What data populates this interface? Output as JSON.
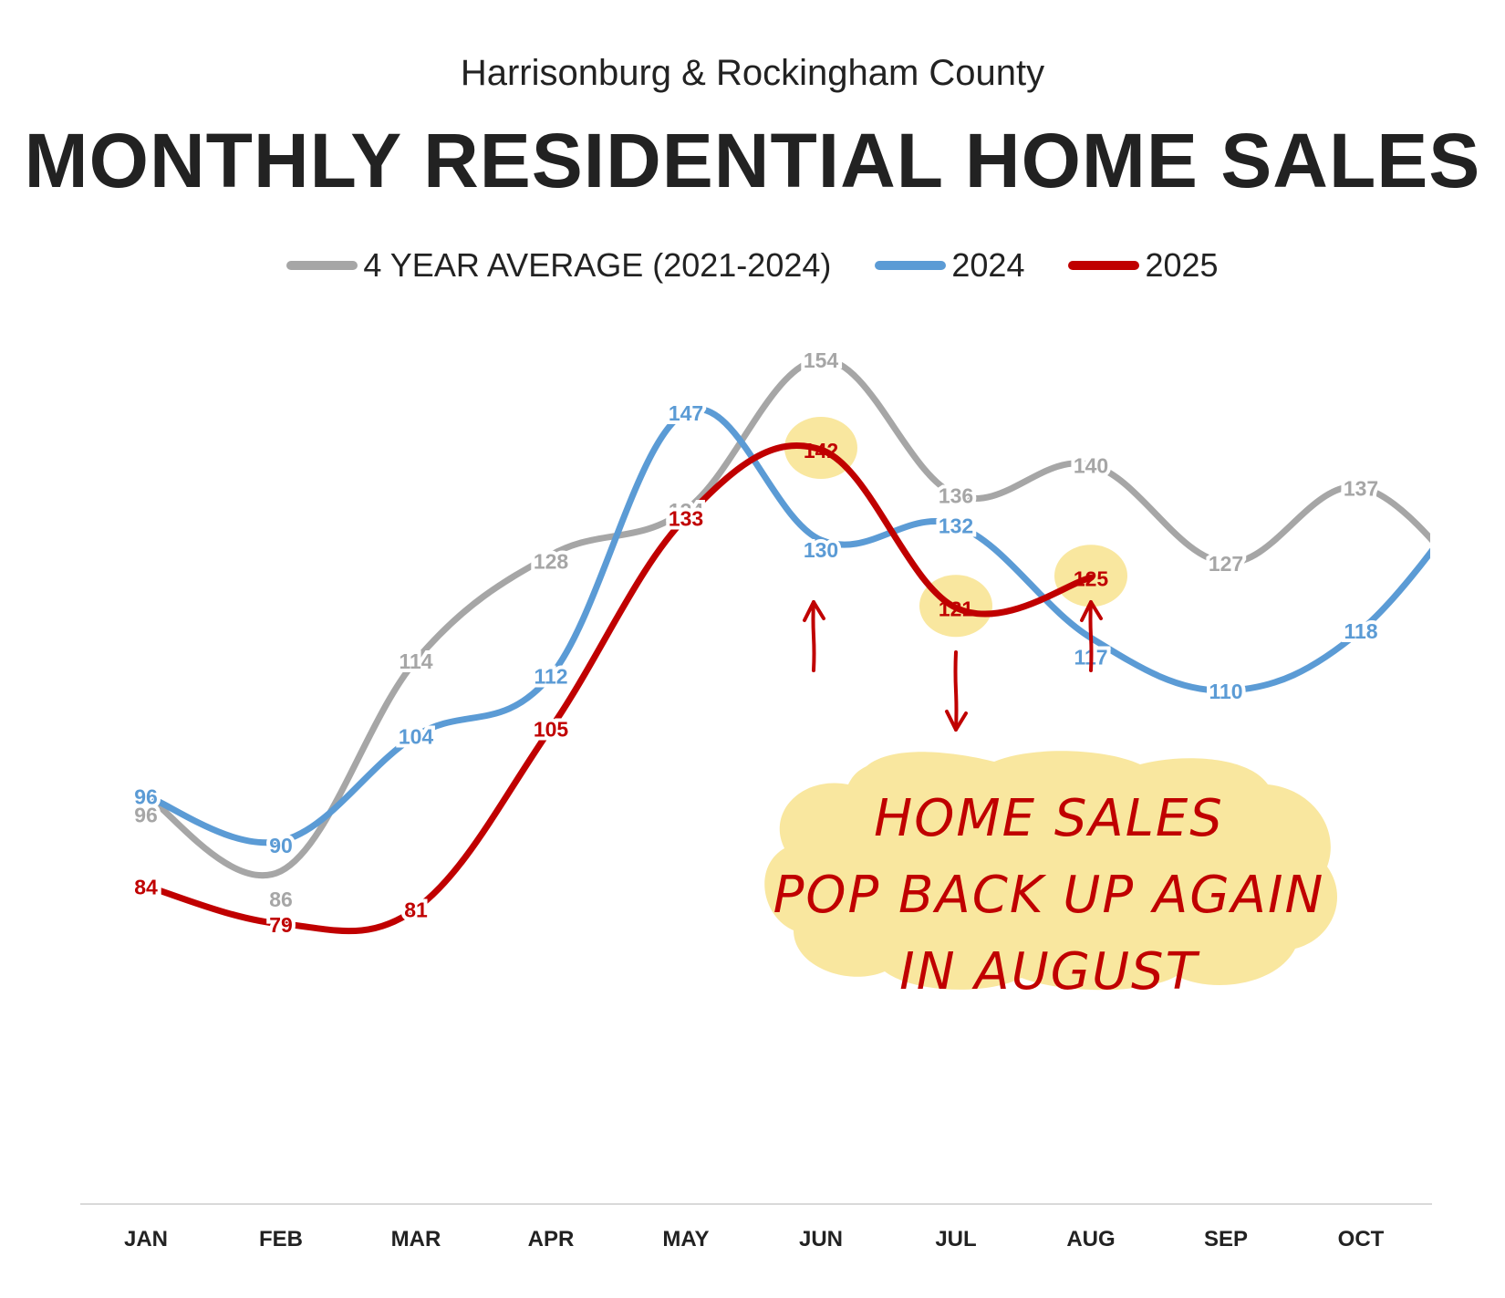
{
  "header": {
    "subtitle": "Harrisonburg & Rockingham County",
    "title": "MONTHLY RESIDENTIAL HOME SALES"
  },
  "legend": [
    {
      "label": "4 YEAR AVERAGE (2021-2024)",
      "color": "#a6a6a6"
    },
    {
      "label": "2024",
      "color": "#5b9bd5"
    },
    {
      "label": "2025",
      "color": "#c00000"
    }
  ],
  "annotation": {
    "lines": [
      "HOME SALES",
      "POP BACK UP AGAIN",
      "IN AUGUST"
    ],
    "highlight_color": "#f9e79f",
    "arrows": [
      {
        "month": "JUN",
        "direction": "up"
      },
      {
        "month": "JUL",
        "direction": "down"
      },
      {
        "month": "AUG",
        "direction": "up"
      }
    ],
    "highlighted_points": [
      {
        "series": "2025",
        "month": "JUN",
        "value": 142
      },
      {
        "series": "2025",
        "month": "JUL",
        "value": 121
      },
      {
        "series": "2025",
        "month": "AUG",
        "value": 125
      }
    ]
  },
  "chart_data": {
    "type": "line",
    "title": "MONTHLY RESIDENTIAL HOME SALES",
    "subtitle": "Harrisonburg & Rockingham County",
    "categories": [
      "JAN",
      "FEB",
      "MAR",
      "APR",
      "MAY",
      "JUN",
      "JUL",
      "AUG",
      "SEP",
      "OCT"
    ],
    "series": [
      {
        "name": "4 YEAR AVERAGE (2021-2024)",
        "color": "#a6a6a6",
        "values": [
          96,
          86,
          114,
          128,
          134,
          154,
          136,
          140,
          127,
          137
        ]
      },
      {
        "name": "2024",
        "color": "#5b9bd5",
        "values": [
          96,
          90,
          104,
          112,
          147,
          130,
          132,
          117,
          110,
          118
        ]
      },
      {
        "name": "2025",
        "color": "#c00000",
        "values": [
          84,
          79,
          81,
          105,
          133,
          142,
          121,
          125,
          null,
          null
        ]
      }
    ],
    "grid": false,
    "legend_position": "top",
    "smooth": true
  }
}
